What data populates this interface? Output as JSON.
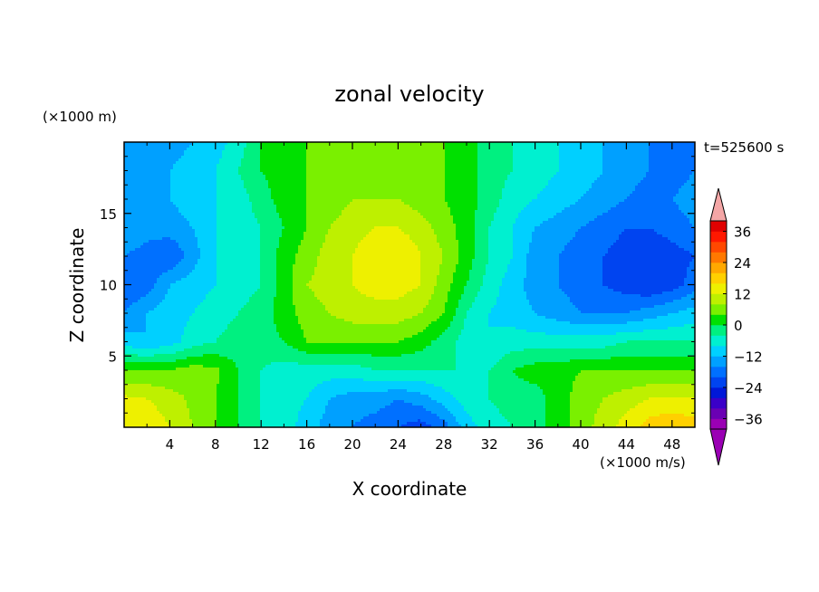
{
  "chart_data": {
    "type": "heatmap",
    "title": "zonal velocity",
    "xlabel": "X coordinate",
    "ylabel": "Z coordinate",
    "x_unit_label": "(×1000 m/s)",
    "y_unit_label": "(×1000 m)",
    "time_label": "t=525600 s",
    "xlim": [
      0,
      50
    ],
    "ylim": [
      0,
      20
    ],
    "x_ticks": [
      4,
      8,
      12,
      16,
      20,
      24,
      28,
      32,
      36,
      40,
      44,
      48
    ],
    "y_ticks": [
      5,
      10,
      15
    ],
    "colorbar": {
      "levels": [
        -40,
        -36,
        -32,
        -28,
        -24,
        -20,
        -16,
        -12,
        -8,
        -4,
        0,
        4,
        8,
        12,
        16,
        20,
        24,
        28,
        32,
        36,
        40
      ],
      "tick_labels": [
        "36",
        "24",
        "12",
        "0",
        "-12",
        "-24",
        "-36"
      ],
      "tick_values": [
        36,
        24,
        12,
        0,
        -12,
        -24,
        -36
      ],
      "colors": [
        "#9a00b4",
        "#6a00b4",
        "#3a00c8",
        "#0018d8",
        "#0044f0",
        "#0070ff",
        "#00a0ff",
        "#00d0ff",
        "#00f0d0",
        "#00f080",
        "#00e000",
        "#7af000",
        "#bef000",
        "#eef000",
        "#ffd000",
        "#ffa800",
        "#ff7800",
        "#ff4800",
        "#ff1800",
        "#e00000"
      ],
      "over_color": "#f4a6a6",
      "under_color": "#9a00b4"
    },
    "grid_x": [
      0,
      2,
      4,
      6,
      8,
      10,
      12,
      14,
      16,
      18,
      20,
      22,
      24,
      26,
      28,
      30,
      32,
      34,
      36,
      38,
      40,
      42,
      44,
      46,
      48,
      50
    ],
    "grid_z": [
      0,
      2,
      4,
      6,
      8,
      10,
      12,
      14,
      16,
      18,
      20
    ],
    "values": [
      [
        16,
        15,
        12,
        8,
        4,
        0,
        -4,
        -6,
        -10,
        -14,
        -16,
        -18,
        -20,
        -22,
        -18,
        -10,
        -6,
        -4,
        -2,
        2,
        6,
        10,
        14,
        18,
        20,
        18
      ],
      [
        13,
        12,
        10,
        7,
        4,
        0,
        -4,
        -6,
        -8,
        -12,
        -14,
        -14,
        -16,
        -14,
        -10,
        -6,
        -4,
        -2,
        -2,
        2,
        6,
        8,
        10,
        12,
        12,
        12
      ],
      [
        4,
        4,
        4,
        6,
        5,
        0,
        -4,
        -6,
        -6,
        -6,
        -6,
        -4,
        -4,
        -4,
        -4,
        -4,
        -4,
        0,
        2,
        2,
        4,
        4,
        4,
        4,
        4,
        4
      ],
      [
        -10,
        -12,
        -10,
        -6,
        -4,
        -2,
        -2,
        0,
        4,
        4,
        4,
        4,
        4,
        2,
        -2,
        -6,
        -8,
        -6,
        -6,
        -6,
        -6,
        -6,
        -4,
        -4,
        -4,
        -4
      ],
      [
        -16,
        -12,
        -10,
        -8,
        -6,
        -4,
        -2,
        2,
        6,
        8,
        10,
        10,
        10,
        8,
        4,
        -4,
        -8,
        -10,
        -12,
        -14,
        -16,
        -16,
        -16,
        -14,
        -12,
        -10
      ],
      [
        -20,
        -18,
        -12,
        -10,
        -8,
        -6,
        -4,
        2,
        8,
        10,
        12,
        14,
        14,
        12,
        6,
        0,
        -6,
        -10,
        -14,
        -16,
        -18,
        -20,
        -22,
        -24,
        -22,
        -18
      ],
      [
        -16,
        -18,
        -20,
        -14,
        -8,
        -6,
        -4,
        2,
        6,
        10,
        12,
        16,
        16,
        12,
        8,
        2,
        -4,
        -8,
        -14,
        -16,
        -18,
        -20,
        -22,
        -24,
        -22,
        -20
      ],
      [
        -12,
        -14,
        -14,
        -12,
        -8,
        -6,
        -4,
        0,
        4,
        8,
        10,
        12,
        12,
        10,
        6,
        2,
        -4,
        -8,
        -12,
        -14,
        -16,
        -18,
        -20,
        -20,
        -18,
        -16
      ],
      [
        -14,
        -14,
        -12,
        -10,
        -8,
        -6,
        -2,
        2,
        4,
        6,
        8,
        8,
        8,
        6,
        4,
        2,
        -2,
        -6,
        -8,
        -10,
        -12,
        -14,
        -16,
        -18,
        -16,
        -14
      ],
      [
        -16,
        -14,
        -12,
        -10,
        -8,
        -4,
        0,
        2,
        4,
        6,
        6,
        6,
        6,
        6,
        4,
        2,
        -2,
        -4,
        -6,
        -8,
        -10,
        -12,
        -14,
        -16,
        -18,
        -16
      ],
      [
        -16,
        -16,
        -14,
        -12,
        -10,
        -6,
        0,
        2,
        4,
        6,
        6,
        6,
        6,
        4,
        4,
        2,
        -2,
        -4,
        -6,
        -8,
        -10,
        -12,
        -14,
        -16,
        -18,
        -18
      ]
    ]
  }
}
